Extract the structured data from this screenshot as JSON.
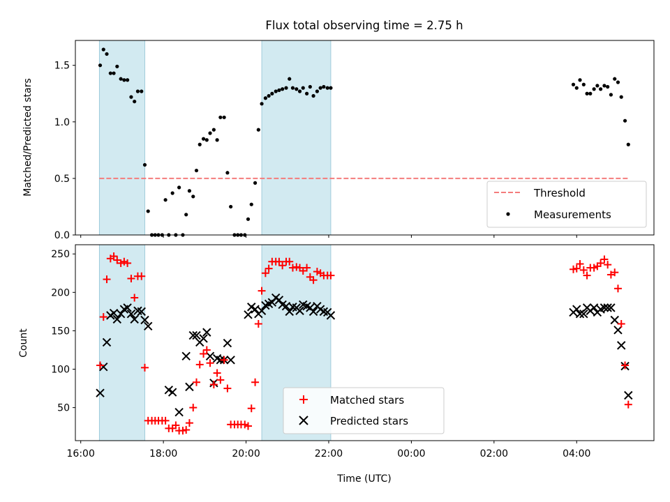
{
  "chart_data": [
    {
      "type": "scatter",
      "title": "Flux total observing time = 2.75 h",
      "ylabel": "Matched/Predicted stars",
      "xlabel": "",
      "ylim": [
        0,
        1.72
      ],
      "yticks": [
        "0.0",
        "0.5",
        "1.0",
        "1.5"
      ],
      "ytick_values": [
        0,
        0.5,
        1.0,
        1.5
      ],
      "legend": {
        "placement": "lower-right",
        "entries": [
          "Threshold",
          "Measurements"
        ]
      },
      "threshold": {
        "name": "Threshold",
        "value": 0.5,
        "color": "#f47c7c"
      },
      "series": [
        {
          "name": "Measurements",
          "color": "#000000",
          "x": [
            16.47,
            16.55,
            16.63,
            16.72,
            16.8,
            16.88,
            16.97,
            17.05,
            17.13,
            17.22,
            17.3,
            17.38,
            17.47,
            17.55,
            17.63,
            17.72,
            17.8,
            17.88,
            17.97,
            18.05,
            18.13,
            18.22,
            18.3,
            18.38,
            18.47,
            18.55,
            18.63,
            18.72,
            18.8,
            18.88,
            18.97,
            19.05,
            19.13,
            19.22,
            19.3,
            19.38,
            19.47,
            19.55,
            19.63,
            19.72,
            19.8,
            19.88,
            19.97,
            20.05,
            20.13,
            20.22,
            20.3,
            20.38,
            20.47,
            20.55,
            20.63,
            20.72,
            20.8,
            20.88,
            20.97,
            21.05,
            21.13,
            21.22,
            21.3,
            21.38,
            21.47,
            21.55,
            21.63,
            21.72,
            21.8,
            21.88,
            21.97,
            22.05,
            27.92,
            28.0,
            28.08,
            28.17,
            28.25,
            28.33,
            28.42,
            28.5,
            28.58,
            28.67,
            28.75,
            28.83,
            28.92,
            29.0,
            29.08,
            29.17,
            29.25
          ],
          "y": [
            1.5,
            1.64,
            1.6,
            1.43,
            1.43,
            1.49,
            1.38,
            1.37,
            1.37,
            1.22,
            1.18,
            1.27,
            1.27,
            0.62,
            0.21,
            0.0,
            0.0,
            0.0,
            0.0,
            0.31,
            0.0,
            0.37,
            0.0,
            0.42,
            0.0,
            0.18,
            0.39,
            0.34,
            0.57,
            0.8,
            0.85,
            0.84,
            0.9,
            0.93,
            0.84,
            1.04,
            1.04,
            0.55,
            0.25,
            0.0,
            0.0,
            0.0,
            0.0,
            0.14,
            0.27,
            0.46,
            0.93,
            1.16,
            1.21,
            1.23,
            1.25,
            1.27,
            1.28,
            1.29,
            1.3,
            1.38,
            1.3,
            1.29,
            1.27,
            1.3,
            1.25,
            1.31,
            1.23,
            1.27,
            1.3,
            1.31,
            1.3,
            1.3,
            1.33,
            1.3,
            1.37,
            1.33,
            1.25,
            1.25,
            1.29,
            1.32,
            1.29,
            1.32,
            1.31,
            1.24,
            1.38,
            1.35,
            1.22,
            1.01,
            0.8
          ]
        }
      ],
      "shaded_spans": [
        [
          16.45,
          17.55
        ],
        [
          20.38,
          22.05
        ]
      ],
      "shade_color": "#add8e6"
    },
    {
      "type": "scatter",
      "title": "",
      "ylabel": "Count",
      "xlabel": "Time (UTC)",
      "ylim": [
        7,
        262
      ],
      "yticks": [
        "50",
        "100",
        "150",
        "200",
        "250"
      ],
      "ytick_values": [
        50,
        100,
        150,
        200,
        250
      ],
      "xlim": [
        15.87,
        29.87
      ],
      "xticks": [
        "16:00",
        "18:00",
        "20:00",
        "22:00",
        "00:00",
        "02:00",
        "04:00"
      ],
      "xtick_values": [
        16,
        18,
        20,
        22,
        24,
        26,
        28
      ],
      "legend": {
        "placement": "lower-center",
        "entries": [
          "Matched stars",
          "Predicted stars"
        ]
      },
      "series": [
        {
          "name": "Matched stars",
          "color": "#ff0000",
          "marker": "plus",
          "x": [
            16.47,
            16.55,
            16.63,
            16.72,
            16.8,
            16.88,
            16.97,
            17.05,
            17.13,
            17.22,
            17.3,
            17.38,
            17.47,
            17.55,
            17.63,
            17.72,
            17.8,
            17.88,
            17.97,
            18.05,
            18.13,
            18.22,
            18.3,
            18.38,
            18.47,
            18.55,
            18.63,
            18.72,
            18.8,
            18.88,
            18.97,
            19.05,
            19.13,
            19.22,
            19.3,
            19.38,
            19.47,
            19.55,
            19.63,
            19.72,
            19.8,
            19.88,
            19.97,
            20.05,
            20.13,
            20.22,
            20.3,
            20.38,
            20.47,
            20.55,
            20.63,
            20.72,
            20.8,
            20.88,
            20.97,
            21.05,
            21.13,
            21.22,
            21.3,
            21.38,
            21.47,
            21.55,
            21.63,
            21.72,
            21.8,
            21.88,
            21.97,
            22.05,
            27.92,
            28.0,
            28.08,
            28.17,
            28.25,
            28.33,
            28.42,
            28.5,
            28.58,
            28.67,
            28.75,
            28.83,
            28.92,
            29.0,
            29.08,
            29.17,
            29.25
          ],
          "y": [
            105,
            168,
            217,
            244,
            247,
            242,
            238,
            240,
            238,
            218,
            193,
            221,
            221,
            102,
            33,
            33,
            33,
            33,
            33,
            33,
            23,
            23,
            27,
            20,
            20,
            21,
            30,
            50,
            83,
            106,
            120,
            125,
            108,
            80,
            95,
            86,
            112,
            75,
            28,
            28,
            28,
            28,
            28,
            26,
            49,
            83,
            159,
            202,
            225,
            231,
            240,
            240,
            240,
            235,
            240,
            240,
            232,
            233,
            232,
            228,
            232,
            220,
            216,
            227,
            225,
            222,
            222,
            222,
            230,
            231,
            237,
            229,
            222,
            232,
            232,
            234,
            238,
            243,
            236,
            223,
            226,
            205,
            159,
            105,
            54
          ]
        },
        {
          "name": "Predicted stars",
          "color": "#000000",
          "marker": "x",
          "x": [
            16.47,
            16.55,
            16.63,
            16.72,
            16.8,
            16.88,
            16.97,
            17.05,
            17.13,
            17.22,
            17.3,
            17.38,
            17.47,
            17.55,
            17.63,
            18.13,
            18.22,
            18.38,
            18.55,
            18.63,
            18.72,
            18.8,
            18.88,
            18.97,
            19.05,
            19.13,
            19.22,
            19.3,
            19.38,
            19.47,
            19.55,
            19.63,
            20.05,
            20.13,
            20.22,
            20.3,
            20.38,
            20.47,
            20.55,
            20.63,
            20.72,
            20.8,
            20.88,
            20.97,
            21.05,
            21.13,
            21.22,
            21.3,
            21.38,
            21.47,
            21.55,
            21.63,
            21.72,
            21.8,
            21.88,
            21.97,
            22.05,
            27.92,
            28.0,
            28.08,
            28.17,
            28.25,
            28.33,
            28.42,
            28.5,
            28.58,
            28.67,
            28.75,
            28.83,
            28.92,
            29.0,
            29.08,
            29.17,
            29.25
          ],
          "y": [
            69,
            103,
            135,
            170,
            173,
            165,
            172,
            178,
            180,
            172,
            165,
            176,
            175,
            164,
            156,
            73,
            70,
            44,
            117,
            77,
            144,
            144,
            135,
            140,
            148,
            117,
            82,
            114,
            112,
            112,
            134,
            112,
            171,
            181,
            178,
            172,
            176,
            183,
            185,
            187,
            193,
            190,
            184,
            182,
            175,
            181,
            180,
            176,
            184,
            182,
            180,
            175,
            182,
            178,
            175,
            174,
            170,
            174,
            178,
            172,
            172,
            180,
            176,
            180,
            174,
            178,
            180,
            180,
            180,
            164,
            151,
            131,
            104,
            66
          ]
        }
      ],
      "shaded_spans": [
        [
          16.45,
          17.55
        ],
        [
          20.38,
          22.05
        ]
      ],
      "shade_color": "#add8e6"
    }
  ]
}
